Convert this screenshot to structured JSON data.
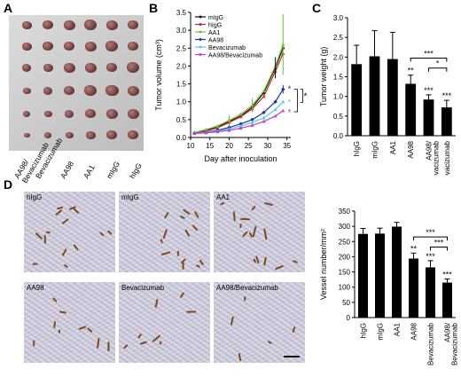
{
  "panel_labels": {
    "a": "A",
    "b": "B",
    "c": "C",
    "d": "D"
  },
  "panel_a": {
    "group_labels": [
      "AA98/\nBevacizumab",
      "Bevacizumab",
      "AA98",
      "AA1",
      "mIgG",
      "hIgG"
    ]
  },
  "chart_data": [
    {
      "type": "line",
      "xlabel": "Day after inoculation",
      "ylabel": "Tumor volume (cm³)",
      "x": [
        11,
        14,
        17,
        20,
        23,
        26,
        29,
        32,
        34
      ],
      "xticks": [
        10,
        15,
        20,
        25,
        30,
        35
      ],
      "xlim": [
        10,
        36
      ],
      "yticks": [
        0.0,
        0.5,
        1.0,
        1.5,
        2.0,
        2.5,
        3.0,
        3.5
      ],
      "ylim": [
        0,
        3.5
      ],
      "legend_position": "top-left",
      "series": [
        {
          "name": "mIgG",
          "color": "#111111",
          "values": [
            0.12,
            0.2,
            0.3,
            0.45,
            0.6,
            0.85,
            1.25,
            1.95,
            2.5
          ]
        },
        {
          "name": "hIgG",
          "color": "#c0282a",
          "values": [
            0.12,
            0.18,
            0.27,
            0.42,
            0.58,
            0.8,
            1.15,
            1.85,
            2.35
          ]
        },
        {
          "name": "AA1",
          "color": "#6fbf3a",
          "values": [
            0.14,
            0.22,
            0.32,
            0.48,
            0.65,
            0.9,
            1.3,
            2.0,
            2.6
          ]
        },
        {
          "name": "AA98",
          "color": "#1f2fa8",
          "values": [
            0.12,
            0.15,
            0.2,
            0.28,
            0.38,
            0.5,
            0.7,
            1.0,
            1.35
          ]
        },
        {
          "name": "Bevacizumab",
          "color": "#58c7e8",
          "values": [
            0.12,
            0.14,
            0.18,
            0.24,
            0.32,
            0.42,
            0.55,
            0.78,
            1.0
          ]
        },
        {
          "name": "AA98/Bevacizumab",
          "color": "#c23fd0",
          "values": [
            0.11,
            0.13,
            0.16,
            0.2,
            0.26,
            0.34,
            0.45,
            0.6,
            0.75
          ]
        }
      ],
      "significance": [
        "*",
        "*",
        "*",
        "*"
      ]
    },
    {
      "type": "bar",
      "ylabel": "Tumor weight (g)",
      "categories": [
        "hIgG",
        "mIgG",
        "AA1",
        "AA98",
        "AA98/\nBevacizumab",
        "Bevacizumab"
      ],
      "values": [
        1.82,
        2.02,
        1.95,
        1.32,
        0.92,
        0.72
      ],
      "errors": [
        0.48,
        0.65,
        0.68,
        0.22,
        0.12,
        0.18
      ],
      "bar_labels": [
        "",
        "",
        "",
        "**",
        "***",
        "***"
      ],
      "yticks": [
        0.0,
        0.5,
        1.0,
        1.5,
        2.0,
        2.5,
        3.0
      ],
      "ylim": [
        0,
        3.0
      ],
      "brackets": [
        "***",
        "*"
      ]
    },
    {
      "type": "bar",
      "ylabel": "Vessel number/mm²",
      "categories": [
        "hIgG",
        "mIgG",
        "AA1",
        "AA98",
        "Bevacizumab",
        "AA98/\nBevacizumab"
      ],
      "values": [
        275,
        276,
        299,
        194,
        165,
        115
      ],
      "errors": [
        18,
        18,
        14,
        18,
        22,
        12
      ],
      "bar_labels": [
        "",
        "",
        "",
        "**",
        "***",
        "***"
      ],
      "yticks": [
        0,
        50,
        100,
        150,
        200,
        250,
        300,
        350
      ],
      "ylim": [
        0,
        350
      ],
      "brackets": [
        "***",
        "***"
      ]
    }
  ],
  "panel_d_tiles": [
    "hIgG",
    "mIgG",
    "AA1",
    "AA98",
    "Bevacizumab",
    "AA98/Bevacizumab"
  ]
}
